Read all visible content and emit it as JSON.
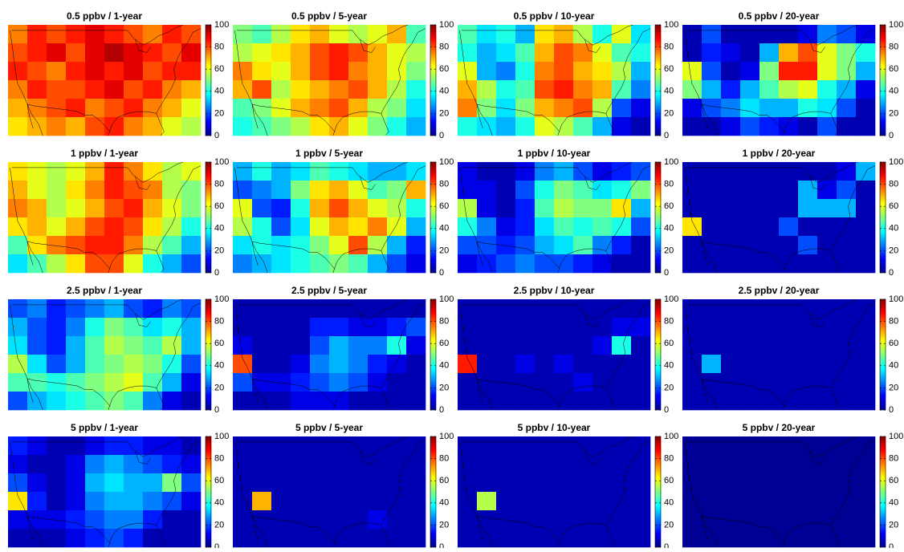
{
  "chart_data": [
    {
      "type": "heatmap",
      "title": "0.5 ppbv / 1-year",
      "colormap": "jet",
      "zlim": [
        0,
        100
      ],
      "zticks": [
        0,
        20,
        40,
        60,
        80,
        100
      ],
      "values": [
        [
          75,
          85,
          80,
          85,
          90,
          85,
          80,
          75,
          85,
          80
        ],
        [
          80,
          85,
          90,
          80,
          90,
          95,
          90,
          85,
          80,
          90
        ],
        [
          85,
          80,
          75,
          85,
          90,
          85,
          90,
          80,
          85,
          85
        ],
        [
          75,
          85,
          80,
          80,
          85,
          90,
          80,
          85,
          75,
          70
        ],
        [
          70,
          75,
          80,
          85,
          75,
          80,
          85,
          75,
          70,
          60
        ],
        [
          65,
          70,
          75,
          70,
          80,
          85,
          75,
          70,
          60,
          55
        ]
      ]
    },
    {
      "type": "heatmap",
      "title": "0.5 ppbv / 5-year",
      "colormap": "jet",
      "zlim": [
        0,
        100
      ],
      "zticks": [
        0,
        20,
        40,
        60,
        80,
        100
      ],
      "values": [
        [
          50,
          45,
          55,
          65,
          70,
          60,
          55,
          60,
          70,
          45
        ],
        [
          55,
          60,
          65,
          70,
          80,
          85,
          80,
          70,
          60,
          55
        ],
        [
          75,
          65,
          60,
          70,
          80,
          85,
          75,
          70,
          60,
          50
        ],
        [
          70,
          80,
          55,
          65,
          70,
          75,
          80,
          70,
          55,
          40
        ],
        [
          45,
          50,
          60,
          70,
          75,
          80,
          70,
          55,
          50,
          35
        ],
        [
          40,
          45,
          50,
          55,
          65,
          70,
          60,
          50,
          40,
          30
        ]
      ]
    },
    {
      "type": "heatmap",
      "title": "0.5 ppbv / 10-year",
      "colormap": "jet",
      "zlim": [
        0,
        100
      ],
      "zticks": [
        0,
        20,
        40,
        60,
        80,
        100
      ],
      "values": [
        [
          45,
          35,
          40,
          30,
          65,
          70,
          55,
          40,
          60,
          35
        ],
        [
          40,
          30,
          35,
          45,
          70,
          80,
          75,
          60,
          45,
          40
        ],
        [
          60,
          30,
          25,
          40,
          75,
          80,
          70,
          65,
          55,
          30
        ],
        [
          70,
          55,
          40,
          45,
          80,
          85,
          75,
          70,
          45,
          25
        ],
        [
          75,
          50,
          35,
          50,
          70,
          75,
          80,
          55,
          20,
          10
        ],
        [
          40,
          35,
          30,
          40,
          60,
          55,
          45,
          30,
          10,
          5
        ]
      ]
    },
    {
      "type": "heatmap",
      "title": "0.5 ppbv / 20-year",
      "colormap": "jet",
      "zlim": [
        0,
        100
      ],
      "zticks": [
        0,
        20,
        40,
        60,
        80,
        100
      ],
      "values": [
        [
          5,
          20,
          5,
          5,
          5,
          5,
          10,
          25,
          20,
          10
        ],
        [
          5,
          15,
          10,
          5,
          30,
          70,
          80,
          60,
          50,
          40
        ],
        [
          60,
          20,
          5,
          10,
          50,
          85,
          85,
          60,
          50,
          30
        ],
        [
          50,
          30,
          15,
          30,
          45,
          55,
          60,
          40,
          30,
          10
        ],
        [
          10,
          20,
          25,
          35,
          30,
          30,
          40,
          35,
          20,
          5
        ],
        [
          5,
          5,
          10,
          20,
          15,
          10,
          5,
          20,
          5,
          5
        ]
      ]
    },
    {
      "type": "heatmap",
      "title": "1 ppbv / 1-year",
      "colormap": "jet",
      "zlim": [
        0,
        100
      ],
      "zticks": [
        0,
        20,
        40,
        60,
        80,
        100
      ],
      "values": [
        [
          65,
          60,
          55,
          60,
          70,
          85,
          75,
          65,
          55,
          60
        ],
        [
          70,
          60,
          55,
          65,
          75,
          85,
          80,
          75,
          55,
          50
        ],
        [
          75,
          70,
          55,
          60,
          70,
          80,
          85,
          70,
          60,
          50
        ],
        [
          65,
          70,
          60,
          70,
          80,
          85,
          80,
          65,
          55,
          40
        ],
        [
          45,
          65,
          75,
          80,
          85,
          85,
          75,
          55,
          45,
          30
        ],
        [
          35,
          45,
          55,
          65,
          80,
          80,
          60,
          40,
          30,
          20
        ]
      ]
    },
    {
      "type": "heatmap",
      "title": "1 ppbv / 5-year",
      "colormap": "jet",
      "zlim": [
        0,
        100
      ],
      "zticks": [
        0,
        20,
        40,
        60,
        80,
        100
      ],
      "values": [
        [
          30,
          40,
          30,
          35,
          45,
          40,
          35,
          30,
          30,
          35
        ],
        [
          20,
          25,
          30,
          50,
          65,
          70,
          60,
          45,
          50,
          70
        ],
        [
          60,
          20,
          15,
          40,
          70,
          80,
          70,
          60,
          55,
          40
        ],
        [
          55,
          40,
          20,
          35,
          60,
          70,
          65,
          75,
          60,
          30
        ],
        [
          35,
          40,
          35,
          40,
          50,
          60,
          80,
          55,
          30,
          15
        ],
        [
          25,
          30,
          35,
          40,
          45,
          50,
          45,
          30,
          20,
          10
        ]
      ]
    },
    {
      "type": "heatmap",
      "title": "1 ppbv / 10-year",
      "colormap": "jet",
      "zlim": [
        0,
        100
      ],
      "zticks": [
        0,
        20,
        40,
        60,
        80,
        100
      ],
      "values": [
        [
          10,
          5,
          5,
          10,
          25,
          30,
          20,
          10,
          15,
          20
        ],
        [
          10,
          10,
          5,
          20,
          40,
          50,
          45,
          35,
          40,
          50
        ],
        [
          55,
          10,
          5,
          15,
          45,
          55,
          50,
          50,
          65,
          30
        ],
        [
          40,
          25,
          10,
          15,
          35,
          45,
          40,
          45,
          40,
          20
        ],
        [
          20,
          20,
          15,
          20,
          30,
          35,
          45,
          25,
          15,
          5
        ],
        [
          10,
          15,
          20,
          25,
          20,
          20,
          15,
          10,
          5,
          5
        ]
      ]
    },
    {
      "type": "heatmap",
      "title": "1 ppbv / 20-year",
      "colormap": "jet",
      "zlim": [
        0,
        100
      ],
      "zticks": [
        0,
        20,
        40,
        60,
        80,
        100
      ],
      "values": [
        [
          5,
          5,
          5,
          5,
          5,
          5,
          5,
          5,
          10,
          30
        ],
        [
          5,
          5,
          5,
          5,
          5,
          5,
          30,
          10,
          20,
          5
        ],
        [
          5,
          5,
          5,
          5,
          5,
          5,
          30,
          30,
          30,
          5
        ],
        [
          65,
          5,
          5,
          5,
          5,
          20,
          5,
          5,
          5,
          5
        ],
        [
          5,
          5,
          5,
          5,
          5,
          5,
          20,
          5,
          5,
          5
        ],
        [
          5,
          5,
          5,
          5,
          5,
          5,
          5,
          5,
          5,
          5
        ]
      ]
    },
    {
      "type": "heatmap",
      "title": "2.5 ppbv / 1-year",
      "colormap": "jet",
      "zlim": [
        0,
        100
      ],
      "zticks": [
        0,
        20,
        40,
        60,
        80,
        100
      ],
      "values": [
        [
          20,
          25,
          15,
          20,
          25,
          30,
          20,
          15,
          25,
          20
        ],
        [
          30,
          20,
          15,
          25,
          40,
          50,
          45,
          35,
          40,
          30
        ],
        [
          35,
          20,
          15,
          30,
          45,
          55,
          50,
          45,
          55,
          30
        ],
        [
          55,
          35,
          20,
          30,
          45,
          50,
          55,
          50,
          40,
          20
        ],
        [
          45,
          45,
          40,
          45,
          50,
          55,
          60,
          45,
          30,
          10
        ],
        [
          20,
          30,
          35,
          40,
          45,
          50,
          45,
          25,
          10,
          5
        ]
      ]
    },
    {
      "type": "heatmap",
      "title": "2.5 ppbv / 5-year",
      "colormap": "jet",
      "zlim": [
        0,
        100
      ],
      "zticks": [
        0,
        20,
        40,
        60,
        80,
        100
      ],
      "values": [
        [
          5,
          5,
          5,
          5,
          5,
          5,
          5,
          5,
          5,
          5
        ],
        [
          5,
          5,
          5,
          5,
          15,
          15,
          10,
          10,
          15,
          20
        ],
        [
          10,
          5,
          5,
          5,
          20,
          30,
          25,
          25,
          40,
          10
        ],
        [
          80,
          5,
          5,
          10,
          25,
          30,
          25,
          15,
          10,
          5
        ],
        [
          20,
          10,
          10,
          15,
          20,
          25,
          20,
          10,
          5,
          5
        ],
        [
          5,
          5,
          5,
          10,
          10,
          10,
          5,
          5,
          5,
          5
        ]
      ]
    },
    {
      "type": "heatmap",
      "title": "2.5 ppbv / 10-year",
      "colormap": "jet",
      "zlim": [
        0,
        100
      ],
      "zticks": [
        0,
        20,
        40,
        60,
        80,
        100
      ],
      "values": [
        [
          5,
          5,
          5,
          5,
          5,
          5,
          5,
          5,
          5,
          5
        ],
        [
          5,
          5,
          5,
          5,
          5,
          5,
          5,
          5,
          10,
          10
        ],
        [
          5,
          5,
          5,
          5,
          5,
          5,
          5,
          10,
          40,
          5
        ],
        [
          85,
          5,
          5,
          10,
          5,
          10,
          5,
          5,
          5,
          5
        ],
        [
          5,
          5,
          5,
          5,
          5,
          5,
          10,
          5,
          5,
          5
        ],
        [
          5,
          5,
          5,
          5,
          5,
          5,
          5,
          5,
          5,
          5
        ]
      ]
    },
    {
      "type": "heatmap",
      "title": "2.5 ppbv / 20-year",
      "colormap": "jet",
      "zlim": [
        0,
        100
      ],
      "zticks": [
        0,
        20,
        40,
        60,
        80,
        100
      ],
      "values": [
        [
          5,
          5,
          5,
          5,
          5,
          5,
          5,
          5,
          5,
          5
        ],
        [
          5,
          5,
          5,
          5,
          5,
          5,
          5,
          5,
          5,
          5
        ],
        [
          5,
          5,
          5,
          5,
          5,
          5,
          5,
          5,
          5,
          5
        ],
        [
          5,
          30,
          5,
          5,
          5,
          5,
          5,
          5,
          5,
          5
        ],
        [
          5,
          5,
          5,
          5,
          5,
          5,
          5,
          5,
          5,
          5
        ],
        [
          5,
          5,
          5,
          5,
          5,
          5,
          5,
          5,
          5,
          5
        ]
      ]
    },
    {
      "type": "heatmap",
      "title": "5 ppbv / 1-year",
      "colormap": "jet",
      "zlim": [
        0,
        100
      ],
      "zticks": [
        0,
        20,
        40,
        60,
        80,
        100
      ],
      "values": [
        [
          15,
          10,
          5,
          5,
          10,
          15,
          15,
          10,
          10,
          5
        ],
        [
          10,
          5,
          5,
          10,
          25,
          30,
          25,
          20,
          15,
          10
        ],
        [
          20,
          10,
          5,
          10,
          30,
          35,
          30,
          30,
          50,
          20
        ],
        [
          65,
          15,
          5,
          10,
          25,
          30,
          30,
          25,
          20,
          10
        ],
        [
          10,
          10,
          10,
          15,
          20,
          25,
          25,
          15,
          5,
          5
        ],
        [
          5,
          5,
          5,
          10,
          15,
          20,
          15,
          5,
          5,
          5
        ]
      ]
    },
    {
      "type": "heatmap",
      "title": "5 ppbv / 5-year",
      "colormap": "jet",
      "zlim": [
        0,
        100
      ],
      "zticks": [
        0,
        20,
        40,
        60,
        80,
        100
      ],
      "values": [
        [
          5,
          5,
          5,
          5,
          5,
          5,
          5,
          5,
          5,
          5
        ],
        [
          5,
          5,
          5,
          5,
          5,
          5,
          5,
          5,
          5,
          5
        ],
        [
          5,
          5,
          5,
          5,
          5,
          5,
          5,
          5,
          5,
          5
        ],
        [
          5,
          70,
          5,
          5,
          5,
          5,
          5,
          5,
          5,
          5
        ],
        [
          5,
          5,
          5,
          5,
          5,
          5,
          5,
          10,
          5,
          5
        ],
        [
          5,
          5,
          5,
          5,
          5,
          5,
          5,
          5,
          5,
          5
        ]
      ]
    },
    {
      "type": "heatmap",
      "title": "5 ppbv / 10-year",
      "colormap": "jet",
      "zlim": [
        0,
        100
      ],
      "zticks": [
        0,
        20,
        40,
        60,
        80,
        100
      ],
      "values": [
        [
          5,
          5,
          5,
          5,
          5,
          5,
          5,
          5,
          5,
          5
        ],
        [
          5,
          5,
          5,
          5,
          5,
          5,
          5,
          5,
          5,
          5
        ],
        [
          5,
          5,
          5,
          5,
          5,
          5,
          5,
          5,
          5,
          5
        ],
        [
          5,
          55,
          5,
          5,
          5,
          5,
          5,
          5,
          5,
          5
        ],
        [
          5,
          5,
          5,
          5,
          5,
          5,
          5,
          5,
          5,
          5
        ],
        [
          5,
          5,
          5,
          5,
          5,
          5,
          5,
          5,
          5,
          5
        ]
      ]
    },
    {
      "type": "heatmap",
      "title": "5 ppbv / 20-year",
      "colormap": "jet",
      "zlim": [
        0,
        100
      ],
      "zticks": [
        0,
        20,
        40,
        60,
        80,
        100
      ],
      "values": [
        [
          2,
          2,
          2,
          2,
          2,
          2,
          2,
          2,
          2,
          2
        ],
        [
          2,
          2,
          2,
          2,
          2,
          2,
          2,
          2,
          2,
          2
        ],
        [
          2,
          2,
          2,
          2,
          2,
          2,
          2,
          2,
          2,
          2
        ],
        [
          2,
          2,
          2,
          2,
          2,
          2,
          2,
          2,
          2,
          2
        ],
        [
          2,
          2,
          2,
          2,
          2,
          2,
          2,
          2,
          2,
          2
        ],
        [
          2,
          2,
          2,
          2,
          2,
          2,
          2,
          2,
          2,
          2
        ]
      ]
    }
  ]
}
